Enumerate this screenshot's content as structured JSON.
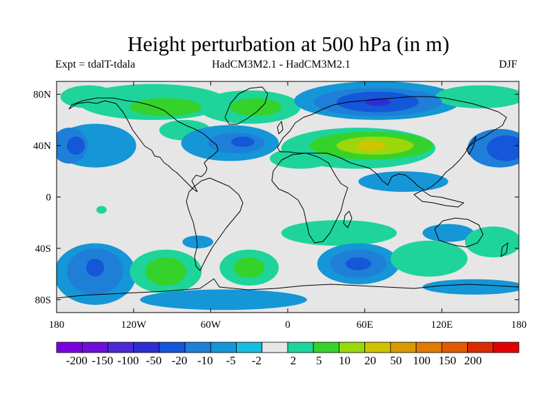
{
  "title": "Height perturbation at 500 hPa (in m)",
  "subtitle_left": "Expt = tdalT-tdala",
  "subtitle_center": "HadCM3M2.1 - HadCM3M2.1",
  "subtitle_right": "DJF",
  "map": {
    "projection": "cylindrical-equidistant",
    "lon_range": [
      -180,
      180
    ],
    "lat_range": [
      -90,
      90
    ],
    "background_color": "#e6e6e6",
    "coastline_color": "#000000",
    "x_ticks": [
      {
        "value": -180,
        "label": "180"
      },
      {
        "value": -120,
        "label": "120W"
      },
      {
        "value": -60,
        "label": "60W"
      },
      {
        "value": 0,
        "label": "0"
      },
      {
        "value": 60,
        "label": "60E"
      },
      {
        "value": 120,
        "label": "120E"
      },
      {
        "value": 180,
        "label": "180"
      }
    ],
    "y_ticks": [
      {
        "value": 80,
        "label": "80N"
      },
      {
        "value": 40,
        "label": "40N"
      },
      {
        "value": 0,
        "label": "0"
      },
      {
        "value": -40,
        "label": "40S"
      },
      {
        "value": -80,
        "label": "80S"
      }
    ],
    "anomaly_cells": [
      {
        "lon": -170,
        "lat": 40,
        "rx": 14,
        "ry": 14,
        "level": -10
      },
      {
        "lon": -165,
        "lat": 40,
        "rx": 7,
        "ry": 7,
        "level": -20
      },
      {
        "lon": -155,
        "lat": 78,
        "rx": 22,
        "ry": 9,
        "level": 5
      },
      {
        "lon": -150,
        "lat": 40,
        "rx": 32,
        "ry": 17,
        "level": -5
      },
      {
        "lon": -105,
        "lat": 74,
        "rx": 58,
        "ry": 14,
        "level": 5
      },
      {
        "lon": -95,
        "lat": 70,
        "rx": 28,
        "ry": 7,
        "level": 10
      },
      {
        "lon": -80,
        "lat": 52,
        "rx": 20,
        "ry": 8,
        "level": 5
      },
      {
        "lon": -45,
        "lat": 42,
        "rx": 38,
        "ry": 14,
        "level": -5
      },
      {
        "lon": -40,
        "lat": 42,
        "rx": 22,
        "ry": 8,
        "level": -10
      },
      {
        "lon": -35,
        "lat": 43,
        "rx": 9,
        "ry": 4,
        "level": -20
      },
      {
        "lon": -30,
        "lat": 70,
        "rx": 40,
        "ry": 13,
        "level": 5
      },
      {
        "lon": -25,
        "lat": 70,
        "rx": 20,
        "ry": 7,
        "level": 10
      },
      {
        "lon": 10,
        "lat": 30,
        "rx": 24,
        "ry": 8,
        "level": 5
      },
      {
        "lon": 55,
        "lat": 38,
        "rx": 60,
        "ry": 16,
        "level": 5
      },
      {
        "lon": 65,
        "lat": 40,
        "rx": 48,
        "ry": 11,
        "level": 10
      },
      {
        "lon": 68,
        "lat": 40,
        "rx": 30,
        "ry": 7,
        "level": 20
      },
      {
        "lon": 65,
        "lat": 40,
        "rx": 11,
        "ry": 4,
        "level": 50
      },
      {
        "lon": 70,
        "lat": 75,
        "rx": 65,
        "ry": 15,
        "level": -5
      },
      {
        "lon": 70,
        "lat": 74,
        "rx": 50,
        "ry": 11,
        "level": -10
      },
      {
        "lon": 70,
        "lat": 74,
        "rx": 32,
        "ry": 8,
        "level": -20
      },
      {
        "lon": 70,
        "lat": 74,
        "rx": 10,
        "ry": 3,
        "level": -50
      },
      {
        "lon": 90,
        "lat": 12,
        "rx": 35,
        "ry": 8,
        "level": -5
      },
      {
        "lon": 150,
        "lat": 78,
        "rx": 35,
        "ry": 9,
        "level": 5
      },
      {
        "lon": 165,
        "lat": 38,
        "rx": 25,
        "ry": 15,
        "level": -10
      },
      {
        "lon": 170,
        "lat": 38,
        "rx": 15,
        "ry": 10,
        "level": -20
      },
      {
        "lon": -145,
        "lat": -10,
        "rx": 4,
        "ry": 3,
        "level": 5
      },
      {
        "lon": -150,
        "lat": -60,
        "rx": 32,
        "ry": 24,
        "level": -5
      },
      {
        "lon": -150,
        "lat": -58,
        "rx": 22,
        "ry": 18,
        "level": -10
      },
      {
        "lon": -150,
        "lat": -55,
        "rx": 7,
        "ry": 7,
        "level": -20
      },
      {
        "lon": -95,
        "lat": -58,
        "rx": 28,
        "ry": 17,
        "level": 5
      },
      {
        "lon": -95,
        "lat": -58,
        "rx": 16,
        "ry": 11,
        "level": 10
      },
      {
        "lon": -70,
        "lat": -35,
        "rx": 12,
        "ry": 5,
        "level": -5
      },
      {
        "lon": -50,
        "lat": -80,
        "rx": 65,
        "ry": 8,
        "level": -5
      },
      {
        "lon": -30,
        "lat": -55,
        "rx": 23,
        "ry": 14,
        "level": 5
      },
      {
        "lon": -30,
        "lat": -55,
        "rx": 12,
        "ry": 8,
        "level": 10
      },
      {
        "lon": 40,
        "lat": -28,
        "rx": 45,
        "ry": 10,
        "level": 5
      },
      {
        "lon": 55,
        "lat": -52,
        "rx": 32,
        "ry": 16,
        "level": -5
      },
      {
        "lon": 55,
        "lat": -52,
        "rx": 22,
        "ry": 11,
        "level": -10
      },
      {
        "lon": 55,
        "lat": -52,
        "rx": 10,
        "ry": 5,
        "level": -20
      },
      {
        "lon": 110,
        "lat": -48,
        "rx": 30,
        "ry": 14,
        "level": 5
      },
      {
        "lon": 125,
        "lat": -28,
        "rx": 20,
        "ry": 7,
        "level": -5
      },
      {
        "lon": 160,
        "lat": -35,
        "rx": 22,
        "ry": 12,
        "level": 5
      },
      {
        "lon": 145,
        "lat": -70,
        "rx": 40,
        "ry": 6,
        "level": -5
      }
    ]
  },
  "colorbar": {
    "colors": [
      "#7b00e0",
      "#6c10d8",
      "#4a2ad2",
      "#2e2ed2",
      "#1457d8",
      "#1f7fd8",
      "#1596d6",
      "#17bce0",
      "#e6e6e6",
      "#1ed49a",
      "#35d22c",
      "#9ad80c",
      "#d0c400",
      "#d89a00",
      "#e07a00",
      "#e05a00",
      "#d82c00",
      "#e00000"
    ],
    "labels": [
      "-200",
      "-150",
      "-100",
      "-50",
      "-20",
      "-10",
      "-5",
      "-2",
      "2",
      "5",
      "10",
      "20",
      "50",
      "100",
      "150",
      "200"
    ]
  }
}
